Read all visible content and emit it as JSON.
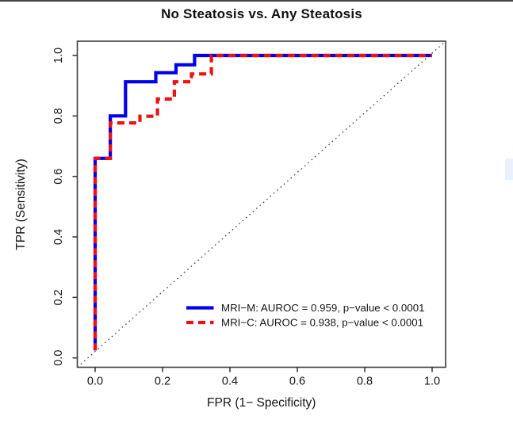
{
  "page": {
    "background": "#ffffff",
    "top_edge_color": "#454545"
  },
  "chart_data": {
    "type": "line",
    "subtype": "roc_step_curves",
    "title": "No Steatosis vs. Any Steatosis",
    "xlabel": "FPR (1− Specificity)",
    "ylabel": "TPR (Sensitivity)",
    "xlim": [
      0,
      1
    ],
    "ylim": [
      0,
      1
    ],
    "grid": false,
    "x_ticks": [
      "0.0",
      "0.2",
      "0.4",
      "0.6",
      "0.8",
      "1.0"
    ],
    "y_ticks": [
      "0.0",
      "0.2",
      "0.4",
      "0.6",
      "0.8",
      "1.0"
    ],
    "x_tick_values": [
      0,
      0.2,
      0.4,
      0.6,
      0.8,
      1.0
    ],
    "y_tick_values": [
      0,
      0.2,
      0.4,
      0.6,
      0.8,
      1.0
    ],
    "reference_line": {
      "name": "chance-diagonal",
      "from": [
        0,
        0
      ],
      "to": [
        1,
        1
      ],
      "style": "dotted",
      "color": "#4d4d4d"
    },
    "legend_position": "bottom-right",
    "series": [
      {
        "name": "MRI-M",
        "label": "MRI−M: AUROC = 0.959, p−value < 0.0001",
        "auroc": 0.959,
        "p_value": "< 0.0001",
        "color": "#0000EE",
        "style": "solid",
        "points": [
          [
            0,
            0.025
          ],
          [
            0,
            0.66
          ],
          [
            0.045,
            0.66
          ],
          [
            0.045,
            0.8
          ],
          [
            0.09,
            0.8
          ],
          [
            0.09,
            0.913
          ],
          [
            0.18,
            0.913
          ],
          [
            0.18,
            0.943
          ],
          [
            0.24,
            0.943
          ],
          [
            0.24,
            0.969
          ],
          [
            0.295,
            0.969
          ],
          [
            0.295,
            1.0
          ],
          [
            1.0,
            1.0
          ]
        ]
      },
      {
        "name": "MRI-C",
        "label": "MRI−C: AUROC = 0.938, p−value < 0.0001",
        "auroc": 0.938,
        "p_value": "< 0.0001",
        "color": "#EE1111",
        "style": "dashed",
        "points": [
          [
            0,
            0.025
          ],
          [
            0,
            0.66
          ],
          [
            0.045,
            0.66
          ],
          [
            0.045,
            0.777
          ],
          [
            0.133,
            0.777
          ],
          [
            0.133,
            0.799
          ],
          [
            0.185,
            0.799
          ],
          [
            0.185,
            0.856
          ],
          [
            0.235,
            0.856
          ],
          [
            0.235,
            0.913
          ],
          [
            0.286,
            0.913
          ],
          [
            0.286,
            0.939
          ],
          [
            0.345,
            0.939
          ],
          [
            0.345,
            1.0
          ],
          [
            1.0,
            1.0
          ]
        ]
      }
    ]
  },
  "artifact": {
    "highlight_color": "#e9f2fc"
  }
}
